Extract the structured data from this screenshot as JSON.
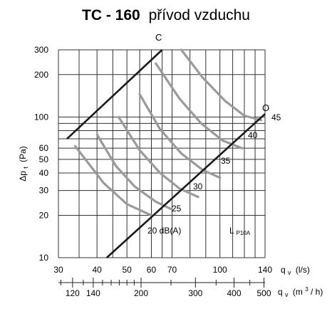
{
  "chart_data": {
    "type": "line",
    "title": {
      "model": "TC - 160",
      "subtitle": "přívod vzduchu"
    },
    "x_scale": "log",
    "y_scale": "log",
    "xlim": [
      30,
      140
    ],
    "ylim": [
      10,
      300
    ],
    "ylabel": "Δp_t (Pa)",
    "ylabel_main": "Δp",
    "ylabel_sub": "t",
    "ylabel_unit": "(Pa)",
    "xlabel_ls": {
      "main": "q",
      "sub": "v",
      "unit": "(l/s)"
    },
    "xlabel_m3h": {
      "main": "q",
      "sub": "v",
      "unit_pre": "(m",
      "unit_sup": "3",
      "unit_post": "/ h)"
    },
    "y_ticks": [
      10,
      20,
      30,
      40,
      50,
      60,
      100,
      200,
      300
    ],
    "y_tick_labels": [
      "10",
      "20",
      "30",
      "40",
      "50",
      "60",
      "100",
      "200",
      "300"
    ],
    "y_grid": [
      10,
      20,
      30,
      40,
      50,
      60,
      70,
      80,
      90,
      100,
      200,
      300
    ],
    "x_ticks_ls": [
      30,
      40,
      50,
      60,
      70,
      100,
      140
    ],
    "x_tick_labels_ls": [
      "30",
      "40",
      "50",
      "60",
      "70",
      "100",
      "140"
    ],
    "x_grid_ls": [
      30,
      35,
      40,
      45,
      50,
      55,
      60,
      65,
      70,
      80,
      90,
      100,
      110,
      120,
      130,
      140
    ],
    "x_ticks_m3h": [
      120,
      140,
      200,
      300,
      400,
      500
    ],
    "x_tick_labels_m3h": [
      "120",
      "140",
      "200",
      "300",
      "400",
      "500"
    ],
    "x_minor_m3h": [
      110,
      130,
      150,
      160,
      170,
      180,
      190,
      250,
      350,
      450
    ],
    "series": [
      {
        "name": "C",
        "role": "limit-closed",
        "color": "#1a1a1a",
        "x": [
          32,
          65
        ],
        "y": [
          70,
          300
        ]
      },
      {
        "name": "O",
        "role": "limit-open",
        "color": "#1a1a1a",
        "x": [
          43,
          140
        ],
        "y": [
          10,
          105
        ]
      }
    ],
    "noise_curves": {
      "color": "#9a9a9a",
      "labels": [
        "20 dB(A)",
        "25",
        "30",
        "35",
        "40",
        "45"
      ],
      "curves": [
        {
          "x": [
            34,
            42,
            50,
            60
          ],
          "y": [
            62,
            34,
            24,
            20
          ]
        },
        {
          "x": [
            40,
            46,
            53,
            62,
            70
          ],
          "y": [
            75,
            45,
            32,
            25,
            22
          ]
        },
        {
          "x": [
            47,
            55,
            64,
            74,
            85
          ],
          "y": [
            100,
            58,
            40,
            31,
            27
          ]
        },
        {
          "x": [
            55,
            64,
            75,
            88,
            100
          ],
          "y": [
            145,
            82,
            55,
            42,
            37
          ]
        },
        {
          "x": [
            62,
            74,
            87,
            102,
            118
          ],
          "y": [
            240,
            135,
            90,
            68,
            60
          ]
        },
        {
          "x": [
            75,
            88,
            104,
            120,
            136
          ],
          "y": [
            300,
            190,
            130,
            102,
            95
          ]
        }
      ]
    },
    "annotations": {
      "line_C": "C",
      "line_O": "O",
      "L_label": "L",
      "L_sub": "P10A"
    }
  }
}
